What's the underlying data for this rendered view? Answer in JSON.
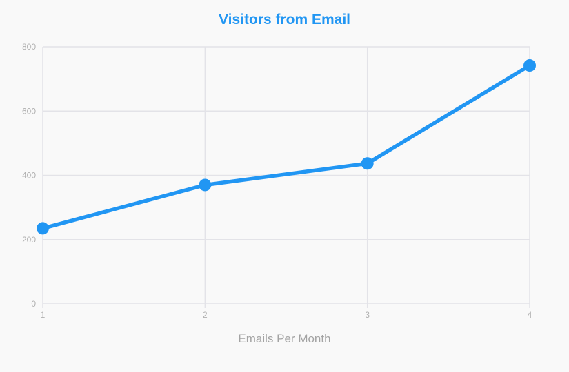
{
  "chart_data": {
    "type": "line",
    "title": "Visitors from Email",
    "xlabel": "Emails Per Month",
    "ylabel": "",
    "x": [
      1,
      2,
      3,
      4
    ],
    "x_tick_labels": [
      "1",
      "2",
      "3",
      "4"
    ],
    "y_ticks": [
      0,
      200,
      400,
      600,
      800
    ],
    "ylim": [
      0,
      800
    ],
    "series": [
      {
        "values": [
          235,
          370,
          437,
          742
        ]
      }
    ],
    "grid": true,
    "line_color": "#2196f3",
    "grid_color": "#e3e3e8"
  }
}
